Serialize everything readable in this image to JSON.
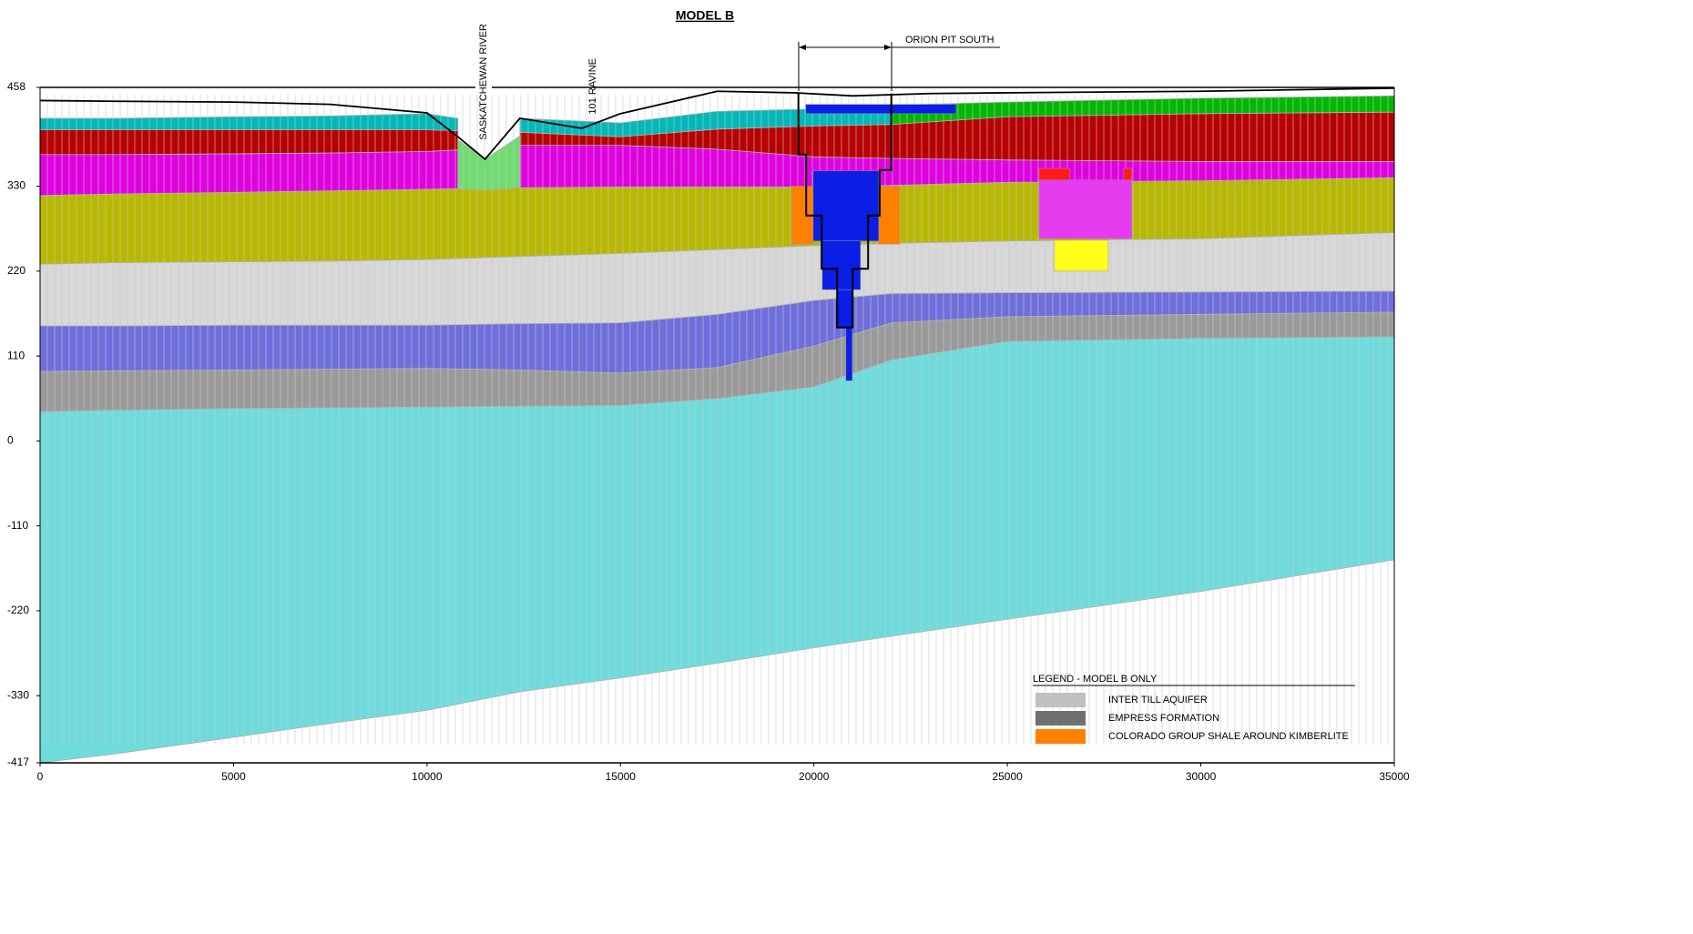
{
  "chart_data": {
    "type": "cross-section",
    "title": "MODEL B",
    "annotations": [
      "SASKATCHEWAN RIVER",
      "101 RAVINE",
      "ORION PIT SOUTH"
    ],
    "xlim": [
      0,
      35000
    ],
    "xticks": [
      0,
      5000,
      10000,
      15000,
      20000,
      25000,
      30000,
      35000
    ],
    "ylim": [
      -417,
      458
    ],
    "yticks": [
      458,
      330,
      220,
      110,
      0,
      -110,
      -220,
      -330,
      -417
    ],
    "layers": [
      {
        "color": "#6edcdc",
        "x": [
          0,
          2000,
          5000,
          7500,
          10000,
          12400,
          15000,
          17500,
          20000,
          22000,
          25000,
          30000,
          35000
        ],
        "top": [
          38,
          40,
          42,
          43,
          44,
          45,
          46,
          55,
          70,
          105,
          129,
          133,
          135
        ],
        "bottom": [
          -417,
          -405,
          -384,
          -366,
          -349,
          -325,
          -307,
          -288,
          -268,
          -253,
          -231,
          -195,
          -154
        ]
      },
      {
        "color": "#9a9a9a",
        "x": [
          0,
          2000,
          5000,
          7500,
          10000,
          12400,
          15000,
          17500,
          20000,
          22000,
          25000,
          30000,
          35000
        ],
        "top": [
          90,
          91,
          92,
          93,
          94,
          92,
          88,
          95,
          123,
          153,
          161,
          164,
          167
        ],
        "bottom": [
          38,
          40,
          42,
          43,
          44,
          45,
          46,
          55,
          70,
          105,
          129,
          133,
          135
        ]
      },
      {
        "color": "#6e6edc",
        "x": [
          0,
          2000,
          5000,
          7500,
          10000,
          12400,
          15000,
          17500,
          20000,
          22000,
          25000,
          30000,
          35000
        ],
        "top": [
          149,
          149,
          150,
          150,
          150,
          152,
          153,
          164,
          182,
          191,
          192,
          193,
          194
        ],
        "bottom": [
          90,
          91,
          92,
          93,
          94,
          92,
          88,
          95,
          123,
          153,
          161,
          164,
          167
        ]
      },
      {
        "color": "#d8d8d8",
        "x": [
          0,
          2000,
          5000,
          7500,
          10000,
          12400,
          15000,
          17500,
          20000,
          22000,
          25000,
          30000,
          35000
        ],
        "top": [
          229,
          231,
          232,
          233,
          235,
          239,
          243,
          248,
          253,
          256,
          259,
          262,
          270
        ],
        "bottom": [
          149,
          149,
          150,
          150,
          150,
          152,
          153,
          164,
          182,
          191,
          192,
          193,
          194
        ]
      },
      {
        "color": "#b8b800",
        "x": [
          0,
          2000,
          5000,
          7500,
          10000,
          12400,
          15000,
          17500,
          20000,
          22000,
          25000,
          30000,
          35000
        ],
        "top": [
          318,
          320,
          322,
          324,
          326,
          328,
          329,
          329,
          329,
          331,
          335,
          337,
          341
        ],
        "bottom": [
          229,
          231,
          232,
          233,
          235,
          239,
          243,
          248,
          253,
          256,
          259,
          262,
          270
        ]
      },
      {
        "color": "#e000e0",
        "x": [
          0,
          2000,
          5000,
          7500,
          10000,
          10800
        ],
        "top": [
          371,
          371,
          372,
          373,
          375,
          377
        ],
        "bottom": [
          318,
          320,
          322,
          324,
          326,
          327
        ]
      },
      {
        "color": "#e000e0",
        "x": [
          12400,
          15000,
          17500,
          20000,
          22000,
          25000,
          30000,
          35000
        ],
        "top": [
          383,
          383,
          378,
          368,
          366,
          364,
          362,
          362
        ],
        "bottom": [
          328,
          329,
          329,
          329,
          331,
          335,
          337,
          341
        ]
      },
      {
        "color": "#b80000",
        "x": [
          0,
          2000,
          5000,
          7500,
          10000,
          10800
        ],
        "top": [
          403,
          403,
          403,
          403,
          403,
          402
        ],
        "bottom": [
          371,
          371,
          372,
          373,
          375,
          377
        ]
      },
      {
        "color": "#b80000",
        "x": [
          12400,
          15000,
          17500,
          20000,
          22000,
          25000,
          30000,
          35000
        ],
        "top": [
          400,
          394,
          404,
          408,
          410,
          420,
          424,
          426
        ],
        "bottom": [
          383,
          383,
          378,
          368,
          366,
          364,
          362,
          362
        ]
      },
      {
        "color": "#00b8b8",
        "x": [
          0,
          2000,
          5000,
          7500,
          10000,
          10800
        ],
        "top": [
          418,
          418,
          420,
          421,
          424,
          418
        ],
        "bottom": [
          403,
          403,
          403,
          403,
          403,
          402
        ]
      },
      {
        "color": "#00b8b8",
        "x": [
          12400,
          15000,
          17500,
          20000,
          22000
        ],
        "top": [
          418,
          412,
          427,
          430,
          428
        ],
        "bottom": [
          400,
          394,
          404,
          408,
          410
        ]
      },
      {
        "color": "#00b800",
        "x": [
          22000,
          25000,
          30000,
          35000
        ],
        "top": [
          435,
          439,
          444,
          447
        ],
        "bottom": [
          410,
          420,
          424,
          426
        ]
      },
      {
        "color": "#70dc70",
        "x": [
          10800,
          11500,
          12400
        ],
        "top": [
          390,
          365,
          395
        ],
        "bottom": [
          327,
          325,
          328
        ]
      }
    ],
    "blocks": [
      {
        "color": "#0a1ee6",
        "x0": 19790,
        "x1": 23675,
        "bottom": 424,
        "top": 436
      },
      {
        "color": "#ff8000",
        "x0": 19416,
        "x1": 19980,
        "bottom": 255,
        "top": 330
      },
      {
        "color": "#ff8000",
        "x0": 21676,
        "x1": 22216,
        "bottom": 255,
        "top": 330
      },
      {
        "color": "#0a1ee6",
        "x0": 19980,
        "x1": 21676,
        "bottom": 259,
        "top": 350
      },
      {
        "color": "#0a1ee6",
        "x0": 20216,
        "x1": 21205,
        "bottom": 196,
        "top": 259
      },
      {
        "color": "#0a1ee6",
        "x0": 20593,
        "x1": 21017,
        "bottom": 147,
        "top": 196
      },
      {
        "color": "#0a1ee6",
        "x0": 20827,
        "x1": 20993,
        "bottom": 78,
        "top": 147
      },
      {
        "color": "#e63cf0",
        "x0": 25817,
        "x1": 28217,
        "bottom": 262,
        "top": 338
      },
      {
        "color": "#ff1a1a",
        "x0": 25817,
        "x1": 26617,
        "bottom": 338,
        "top": 353
      },
      {
        "color": "#ff1a1a",
        "x0": 28005,
        "x1": 28217,
        "bottom": 338,
        "top": 353
      },
      {
        "color": "#ffff1a",
        "x0": 26217,
        "x1": 27606,
        "bottom": 220,
        "top": 260
      }
    ],
    "surface": {
      "x": [
        0,
        2000,
        5000,
        7500,
        10000,
        10800,
        11500,
        12400,
        14000,
        15000,
        17500,
        19500,
        21000,
        23000,
        25000,
        30000,
        35000
      ],
      "y": [
        441,
        440,
        439,
        436,
        425,
        394,
        365,
        418,
        405,
        424,
        453,
        451,
        447,
        450,
        451,
        453,
        457
      ]
    },
    "pit_outline": {
      "x": [
        19600,
        19600,
        19800,
        19800,
        20200,
        20200,
        20600,
        20600,
        21000,
        21000,
        21400,
        21400,
        21700,
        21700,
        22000,
        22000
      ],
      "y": [
        450,
        371,
        371,
        292,
        292,
        223,
        223,
        147,
        147,
        223,
        223,
        292,
        292,
        351,
        351,
        450
      ]
    },
    "legend": {
      "title": "LEGEND - MODEL B ONLY",
      "entries": [
        {
          "label": "INTER TILL AQUIFER",
          "color": "#c0c0c0"
        },
        {
          "label": "EMPRESS FORMATION",
          "color": "#707070"
        },
        {
          "label": "COLORADO GROUP SHALE AROUND KIMBERLITE",
          "color": "#ff8000"
        }
      ]
    }
  }
}
